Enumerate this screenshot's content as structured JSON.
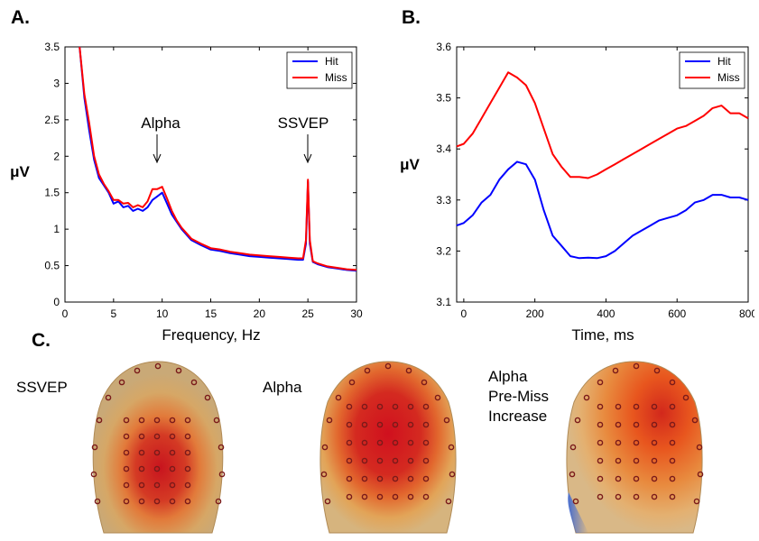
{
  "panels": {
    "a_letter": "A.",
    "b_letter": "B.",
    "c_letter": "C."
  },
  "annotations": {
    "alpha": "Alpha",
    "ssvep": "SSVEP"
  },
  "topomaps": {
    "labels": [
      "SSVEP",
      "Alpha",
      "Alpha\nPre-Miss\nIncrease"
    ]
  },
  "colors": {
    "hit": "#0000ff",
    "miss": "#ff0000"
  },
  "chart_data": [
    {
      "type": "line",
      "xlabel": "Frequency, Hz",
      "ylabel": "μV",
      "xlim": [
        0,
        30
      ],
      "ylim": [
        0,
        3.5
      ],
      "xticks": [
        "0",
        "5",
        "10",
        "15",
        "20",
        "25",
        "30"
      ],
      "yticks": [
        "0",
        "0.5",
        "1",
        "1.5",
        "2",
        "2.5",
        "3",
        "3.5"
      ],
      "legend": "top-right",
      "x": [
        1.5,
        2,
        2.5,
        3,
        3.5,
        4,
        4.5,
        5,
        5.5,
        6,
        6.5,
        7,
        7.5,
        8,
        8.5,
        9,
        9.5,
        10,
        10.5,
        11,
        11.5,
        12,
        13,
        14,
        15,
        16,
        17,
        18,
        19,
        20,
        21,
        22,
        23,
        24,
        24.5,
        24.8,
        25,
        25.2,
        25.5,
        26,
        27,
        28,
        29,
        30
      ],
      "series": [
        {
          "name": "Hit",
          "values": [
            3.5,
            2.8,
            2.35,
            1.95,
            1.7,
            1.6,
            1.5,
            1.35,
            1.38,
            1.3,
            1.32,
            1.25,
            1.28,
            1.25,
            1.3,
            1.4,
            1.45,
            1.5,
            1.35,
            1.2,
            1.1,
            1.0,
            0.85,
            0.78,
            0.72,
            0.7,
            0.67,
            0.65,
            0.63,
            0.62,
            0.61,
            0.6,
            0.59,
            0.58,
            0.58,
            0.8,
            1.65,
            0.8,
            0.55,
            0.52,
            0.48,
            0.46,
            0.44,
            0.43
          ]
        },
        {
          "name": "Miss",
          "values": [
            3.5,
            2.85,
            2.45,
            2.0,
            1.75,
            1.62,
            1.52,
            1.4,
            1.4,
            1.35,
            1.36,
            1.3,
            1.33,
            1.3,
            1.38,
            1.55,
            1.55,
            1.58,
            1.42,
            1.25,
            1.12,
            1.02,
            0.87,
            0.8,
            0.74,
            0.72,
            0.69,
            0.67,
            0.65,
            0.64,
            0.63,
            0.62,
            0.61,
            0.6,
            0.6,
            0.85,
            1.68,
            0.85,
            0.56,
            0.53,
            0.49,
            0.47,
            0.45,
            0.44
          ]
        }
      ]
    },
    {
      "type": "line",
      "xlabel": "Time, ms",
      "ylabel": "μV",
      "xlim": [
        -20,
        800
      ],
      "ylim": [
        3.1,
        3.6
      ],
      "xticks": [
        "0",
        "200",
        "400",
        "600",
        "800"
      ],
      "yticks": [
        "3.1",
        "3.2",
        "3.3",
        "3.4",
        "3.5",
        "3.6"
      ],
      "legend": "top-right",
      "x": [
        -20,
        0,
        25,
        50,
        75,
        100,
        125,
        150,
        175,
        200,
        225,
        250,
        275,
        300,
        325,
        350,
        375,
        400,
        425,
        450,
        475,
        500,
        525,
        550,
        575,
        600,
        625,
        650,
        675,
        700,
        725,
        750,
        775,
        800
      ],
      "series": [
        {
          "name": "Hit",
          "values": [
            3.25,
            3.255,
            3.27,
            3.295,
            3.31,
            3.34,
            3.36,
            3.375,
            3.37,
            3.34,
            3.28,
            3.23,
            3.21,
            3.19,
            3.186,
            3.187,
            3.186,
            3.19,
            3.2,
            3.215,
            3.23,
            3.24,
            3.25,
            3.26,
            3.265,
            3.27,
            3.28,
            3.295,
            3.3,
            3.31,
            3.31,
            3.305,
            3.305,
            3.3
          ]
        },
        {
          "name": "Miss",
          "values": [
            3.405,
            3.41,
            3.43,
            3.46,
            3.49,
            3.52,
            3.55,
            3.54,
            3.525,
            3.49,
            3.44,
            3.39,
            3.365,
            3.345,
            3.345,
            3.343,
            3.35,
            3.36,
            3.37,
            3.38,
            3.39,
            3.4,
            3.41,
            3.42,
            3.43,
            3.44,
            3.445,
            3.455,
            3.465,
            3.48,
            3.485,
            3.47,
            3.47,
            3.46
          ]
        }
      ]
    }
  ]
}
